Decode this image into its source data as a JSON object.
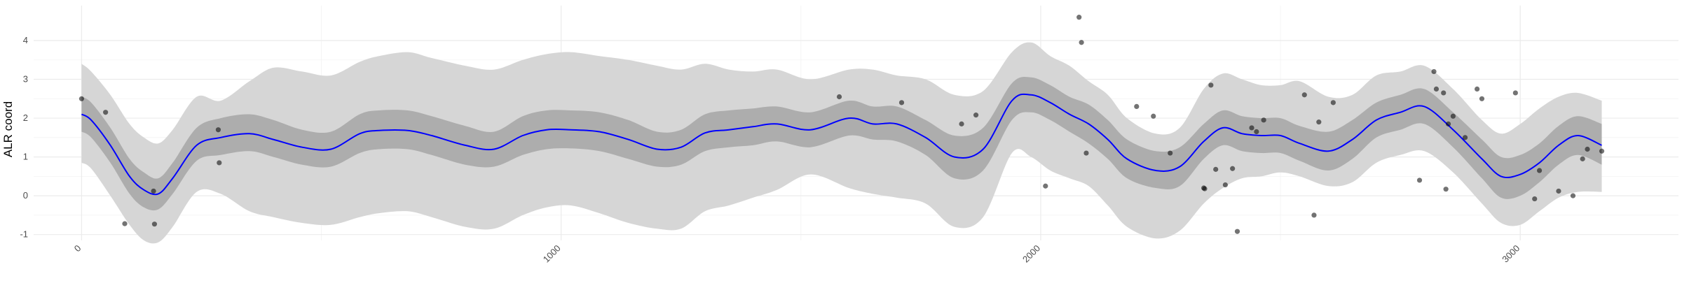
{
  "chart_data": {
    "type": "line",
    "title": "",
    "xlabel": "",
    "ylabel": "ALR coord",
    "xlim": [
      -100,
      3330
    ],
    "ylim": [
      -1.15,
      4.9
    ],
    "x_ticks": [
      0,
      1000,
      2000,
      3000
    ],
    "x_tick_labels": [
      "0",
      "1000",
      "2000",
      "3000"
    ],
    "y_ticks": [
      -1,
      0,
      1,
      2,
      3,
      4
    ],
    "y_tick_labels": [
      "-1",
      "0",
      "1",
      "2",
      "3",
      "4"
    ],
    "grid": true,
    "legend": "none",
    "colors": {
      "line": "#0000ff",
      "inner_band": "#adadad",
      "outer_band": "#d6d6d6",
      "points": "#000000"
    },
    "series": [
      {
        "role": "mean",
        "x": [
          0,
          20,
          60,
          100,
          130,
          160,
          190,
          240,
          290,
          350,
          400,
          460,
          520,
          580,
          620,
          680,
          730,
          800,
          860,
          920,
          970,
          1020,
          1080,
          1140,
          1200,
          1250,
          1300,
          1350,
          1400,
          1450,
          1520,
          1600,
          1650,
          1700,
          1760,
          1820,
          1880,
          1940,
          1980,
          2020,
          2060,
          2100,
          2140,
          2180,
          2240,
          2290,
          2340,
          2380,
          2420,
          2460,
          2500,
          2540,
          2600,
          2650,
          2700,
          2750,
          2800,
          2860,
          2920,
          2960,
          3000,
          3040,
          3080,
          3120,
          3170
        ],
        "y": [
          2.1,
          1.95,
          1.3,
          0.5,
          0.15,
          0.05,
          0.45,
          1.3,
          1.5,
          1.6,
          1.45,
          1.25,
          1.2,
          1.6,
          1.68,
          1.68,
          1.55,
          1.3,
          1.2,
          1.55,
          1.7,
          1.7,
          1.65,
          1.45,
          1.2,
          1.25,
          1.62,
          1.7,
          1.78,
          1.85,
          1.7,
          2.0,
          1.85,
          1.85,
          1.5,
          1.0,
          1.2,
          2.45,
          2.6,
          2.4,
          2.1,
          1.85,
          1.45,
          0.95,
          0.65,
          0.75,
          1.4,
          1.75,
          1.6,
          1.55,
          1.55,
          1.35,
          1.15,
          1.45,
          1.95,
          2.15,
          2.3,
          1.7,
          0.95,
          0.5,
          0.55,
          0.85,
          1.3,
          1.55,
          1.3
        ]
      },
      {
        "role": "inner-band",
        "x": [
          0,
          20,
          60,
          100,
          130,
          160,
          190,
          240,
          290,
          350,
          400,
          460,
          520,
          580,
          620,
          680,
          730,
          800,
          860,
          920,
          970,
          1020,
          1080,
          1140,
          1200,
          1250,
          1300,
          1350,
          1400,
          1450,
          1520,
          1600,
          1650,
          1700,
          1760,
          1820,
          1880,
          1940,
          1980,
          2020,
          2060,
          2100,
          2140,
          2180,
          2240,
          2290,
          2340,
          2380,
          2420,
          2460,
          2500,
          2540,
          2600,
          2650,
          2700,
          2750,
          2800,
          2860,
          2920,
          2960,
          3000,
          3040,
          3080,
          3120,
          3170
        ],
        "lower": [
          1.65,
          1.5,
          0.85,
          0.05,
          -0.3,
          -0.35,
          0.05,
          0.9,
          1.05,
          1.15,
          1.0,
          0.8,
          0.75,
          1.1,
          1.2,
          1.2,
          1.05,
          0.8,
          0.75,
          1.05,
          1.2,
          1.22,
          1.15,
          0.95,
          0.75,
          0.8,
          1.15,
          1.25,
          1.3,
          1.4,
          1.25,
          1.55,
          1.45,
          1.4,
          1.05,
          0.45,
          0.65,
          1.95,
          2.15,
          1.95,
          1.65,
          1.35,
          0.95,
          0.45,
          0.2,
          0.25,
          0.95,
          1.3,
          1.15,
          1.1,
          1.1,
          0.9,
          0.65,
          0.95,
          1.5,
          1.7,
          1.85,
          1.25,
          0.45,
          -0.05,
          0.0,
          0.35,
          0.8,
          1.05,
          0.8
        ],
        "upper": [
          2.55,
          2.4,
          1.75,
          0.95,
          0.6,
          0.45,
          0.85,
          1.75,
          2.0,
          2.1,
          1.95,
          1.7,
          1.65,
          2.1,
          2.2,
          2.2,
          2.05,
          1.8,
          1.65,
          2.05,
          2.2,
          2.2,
          2.15,
          1.95,
          1.65,
          1.7,
          2.1,
          2.2,
          2.25,
          2.3,
          2.15,
          2.45,
          2.3,
          2.3,
          1.95,
          1.55,
          1.75,
          2.9,
          3.05,
          2.85,
          2.55,
          2.35,
          1.95,
          1.45,
          1.15,
          1.25,
          1.85,
          2.2,
          2.05,
          2.0,
          2.0,
          1.8,
          1.65,
          1.95,
          2.4,
          2.6,
          2.75,
          2.15,
          1.45,
          1.0,
          1.05,
          1.35,
          1.8,
          2.05,
          1.85
        ]
      },
      {
        "role": "outer-band",
        "x": [
          0,
          20,
          60,
          100,
          130,
          160,
          190,
          240,
          290,
          350,
          400,
          460,
          520,
          580,
          620,
          680,
          730,
          800,
          860,
          920,
          970,
          1020,
          1080,
          1140,
          1200,
          1250,
          1300,
          1350,
          1400,
          1450,
          1520,
          1600,
          1650,
          1700,
          1760,
          1820,
          1880,
          1940,
          1980,
          2020,
          2060,
          2100,
          2140,
          2180,
          2240,
          2290,
          2340,
          2380,
          2420,
          2460,
          2500,
          2540,
          2600,
          2650,
          2700,
          2750,
          2800,
          2860,
          2920,
          2960,
          3000,
          3040,
          3080,
          3120,
          3170
        ],
        "lower": [
          0.85,
          0.7,
          0.0,
          -0.75,
          -1.15,
          -1.2,
          -0.8,
          0.1,
          0.05,
          -0.4,
          -0.55,
          -0.7,
          -0.75,
          -0.55,
          -0.45,
          -0.4,
          -0.55,
          -0.8,
          -0.85,
          -0.5,
          -0.3,
          -0.25,
          -0.45,
          -0.7,
          -0.85,
          -0.85,
          -0.4,
          -0.25,
          -0.05,
          0.15,
          0.55,
          0.2,
          0.05,
          -0.05,
          -0.2,
          -0.8,
          -0.55,
          1.1,
          1.0,
          0.65,
          0.45,
          0.25,
          -0.25,
          -0.8,
          -1.1,
          -0.9,
          -0.2,
          0.2,
          0.45,
          0.5,
          0.6,
          0.5,
          0.25,
          0.35,
          0.85,
          1.05,
          1.15,
          0.6,
          -0.2,
          -0.7,
          -0.75,
          -0.4,
          -0.05,
          0.1,
          0.1
        ],
        "upper": [
          3.4,
          3.2,
          2.6,
          1.85,
          1.5,
          1.35,
          1.7,
          2.55,
          2.45,
          2.95,
          3.3,
          3.2,
          3.1,
          3.45,
          3.6,
          3.7,
          3.55,
          3.35,
          3.25,
          3.5,
          3.65,
          3.7,
          3.6,
          3.5,
          3.35,
          3.25,
          3.4,
          3.25,
          3.2,
          3.25,
          3.0,
          3.25,
          3.25,
          3.1,
          3.0,
          2.6,
          2.7,
          3.7,
          3.95,
          3.6,
          3.35,
          2.95,
          2.6,
          2.0,
          1.6,
          1.75,
          2.75,
          3.15,
          3.0,
          2.85,
          2.85,
          2.95,
          2.55,
          2.6,
          3.1,
          3.2,
          3.35,
          2.75,
          1.95,
          1.6,
          1.85,
          2.25,
          2.55,
          2.65,
          2.45
        ]
      },
      {
        "role": "observations",
        "x": [
          0,
          50,
          90,
          150,
          152,
          285,
          287,
          1580,
          1710,
          1835,
          1865,
          2010,
          2080,
          2085,
          2095,
          2200,
          2235,
          2270,
          2340,
          2342,
          2355,
          2365,
          2385,
          2400,
          2410,
          2440,
          2450,
          2465,
          2550,
          2570,
          2580,
          2610,
          2790,
          2820,
          2825,
          2840,
          2845,
          2850,
          2860,
          2885,
          2910,
          2920,
          2990,
          3030,
          3040,
          3080,
          3110,
          3130,
          3140,
          3170
        ],
        "y": [
          2.5,
          2.15,
          -0.72,
          0.12,
          -0.73,
          1.7,
          0.85,
          2.55,
          2.4,
          1.85,
          2.08,
          0.25,
          4.6,
          3.95,
          1.1,
          2.3,
          2.05,
          1.1,
          0.2,
          0.18,
          2.85,
          0.68,
          0.28,
          0.7,
          -0.92,
          1.75,
          1.65,
          1.95,
          2.6,
          -0.5,
          1.9,
          2.4,
          0.4,
          3.2,
          2.75,
          2.65,
          0.17,
          1.85,
          2.05,
          1.5,
          2.75,
          2.5,
          2.65,
          -0.08,
          0.65,
          0.12,
          0.0,
          0.95,
          1.2,
          1.15
        ]
      }
    ]
  }
}
